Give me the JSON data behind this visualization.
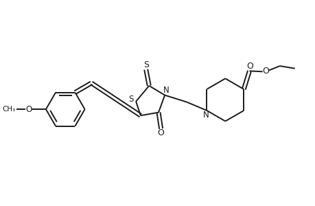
{
  "bg_color": "#ffffff",
  "line_color": "#1a1a1a",
  "line_width": 1.4,
  "fig_width": 4.6,
  "fig_height": 3.0,
  "dpi": 100,
  "xlim": [
    0,
    10
  ],
  "ylim": [
    0,
    6.5
  ]
}
